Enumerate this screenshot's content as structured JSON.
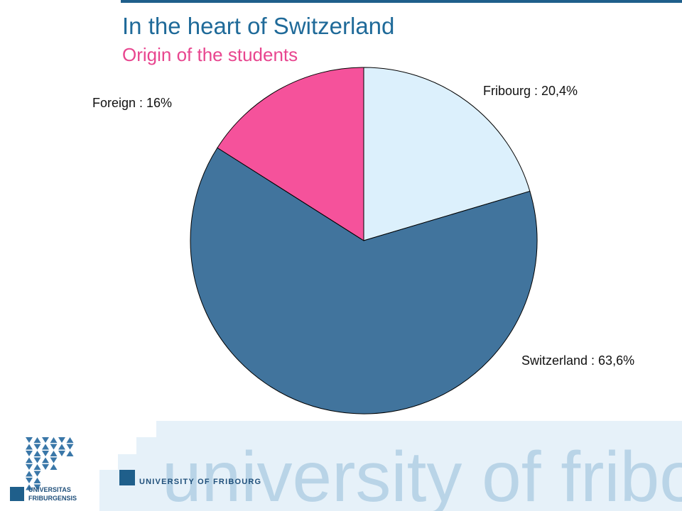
{
  "chart_data": {
    "type": "pie",
    "title": "In the heart of Switzerland",
    "subtitle": "Origin of the students",
    "values": [
      20.4,
      63.6,
      16
    ],
    "value_labels": [
      "Fribourg : 20,4%",
      "Switzerland : 63,6%",
      "Foreign : 16%"
    ],
    "colors": [
      "#dcf0fc",
      "#41749d",
      "#f5529b"
    ]
  },
  "footer": {
    "wordmark": "university of fribourg",
    "brand": "UNIVERSITY OF FRIBOURG",
    "logo_lines": [
      "UNIVERSITAS",
      "FRIBURGENSIS"
    ]
  }
}
